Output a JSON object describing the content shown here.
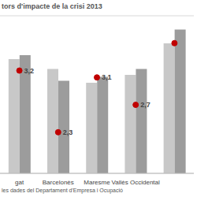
{
  "chart_data": {
    "type": "bar",
    "title": "tors d'impacte de la crisi 2013",
    "subtitle": "les dades del Departament d'Empresa i Ocupació",
    "categories": [
      "gat",
      "Barcelonès",
      "Maresme",
      "Vallès Occidental",
      null
    ],
    "series": [
      {
        "type": "bar",
        "color": "#c8c8c8",
        "values": [
          5.8,
          5.3,
          4.6,
          5.0,
          6.6
        ]
      },
      {
        "type": "bar",
        "color": "#9c9c9c",
        "values": [
          6.0,
          4.7,
          4.9,
          5.3,
          7.3
        ]
      },
      {
        "type": "scatter",
        "axis": "y2",
        "color": "#c00000",
        "marker": "circle",
        "values": [
          3.2,
          2.3,
          3.1,
          2.7,
          3.6
        ],
        "value_labels": [
          "3,2",
          "2,3",
          "3,1",
          "2,7",
          null
        ],
        "data_labels": true
      }
    ],
    "ylim": [
      0,
      8
    ],
    "yticks": [
      0,
      1,
      2,
      3,
      4,
      5,
      6,
      7,
      8
    ],
    "y2lim": [
      1.7,
      4.0
    ],
    "y2ticks": [
      1.7,
      4.0
    ],
    "grid": true,
    "tick_labels": "x"
  }
}
